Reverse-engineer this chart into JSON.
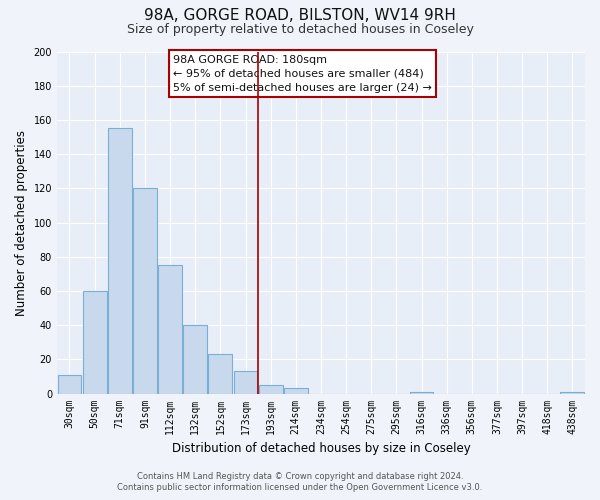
{
  "title": "98A, GORGE ROAD, BILSTON, WV14 9RH",
  "subtitle": "Size of property relative to detached houses in Coseley",
  "xlabel": "Distribution of detached houses by size in Coseley",
  "ylabel": "Number of detached properties",
  "bar_labels": [
    "30sqm",
    "50sqm",
    "71sqm",
    "91sqm",
    "112sqm",
    "132sqm",
    "152sqm",
    "173sqm",
    "193sqm",
    "214sqm",
    "234sqm",
    "254sqm",
    "275sqm",
    "295sqm",
    "316sqm",
    "336sqm",
    "356sqm",
    "377sqm",
    "397sqm",
    "418sqm",
    "438sqm"
  ],
  "bar_values": [
    11,
    60,
    155,
    120,
    75,
    40,
    23,
    13,
    5,
    3,
    0,
    0,
    0,
    0,
    1,
    0,
    0,
    0,
    0,
    0,
    1
  ],
  "bar_color": "#c8d9ee",
  "bar_edge_color": "#7aafd4",
  "vline_color": "#aa0000",
  "ylim": [
    0,
    200
  ],
  "yticks": [
    0,
    20,
    40,
    60,
    80,
    100,
    120,
    140,
    160,
    180,
    200
  ],
  "annotation_title": "98A GORGE ROAD: 180sqm",
  "annotation_line1": "← 95% of detached houses are smaller (484)",
  "annotation_line2": "5% of semi-detached houses are larger (24) →",
  "footer1": "Contains HM Land Registry data © Crown copyright and database right 2024.",
  "footer2": "Contains public sector information licensed under the Open Government Licence v3.0.",
  "background_color": "#f0f4fa",
  "plot_bg_color": "#e8eef8",
  "grid_color": "#ffffff",
  "title_fontsize": 11,
  "subtitle_fontsize": 9,
  "axis_label_fontsize": 8.5,
  "tick_fontsize": 7,
  "footer_fontsize": 6,
  "ann_fontsize": 8
}
